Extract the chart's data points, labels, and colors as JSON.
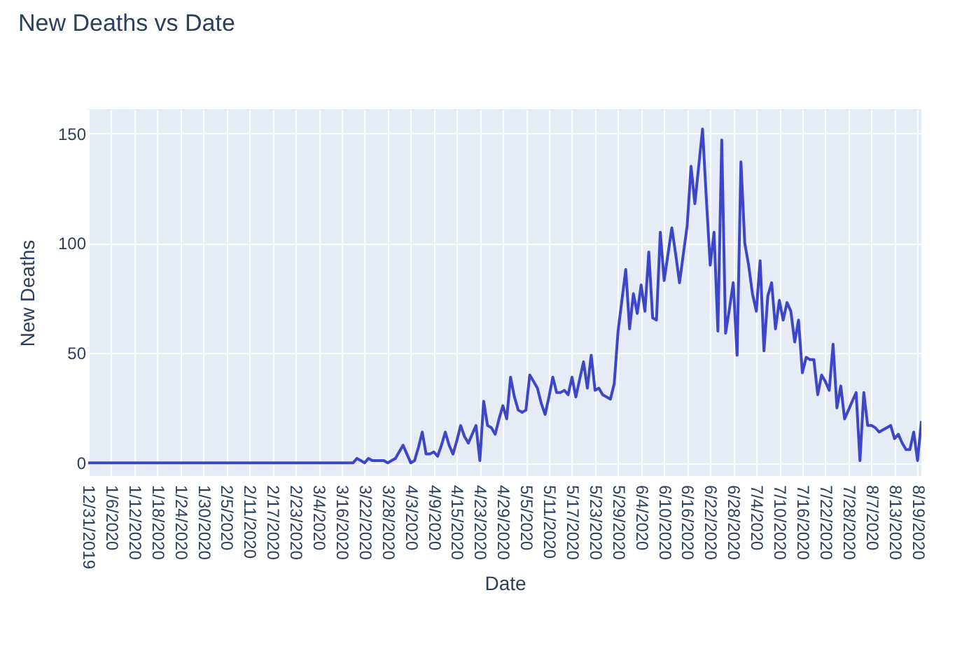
{
  "chart_data": {
    "type": "line",
    "title": "New Deaths vs Date",
    "xlabel": "Date",
    "ylabel": "New Deaths",
    "categories": [
      "12/31/2019",
      null,
      null,
      null,
      null,
      null,
      "1/6/2020",
      null,
      null,
      null,
      null,
      null,
      "1/12/2020",
      null,
      null,
      null,
      null,
      null,
      "1/18/2020",
      null,
      null,
      null,
      null,
      null,
      "1/24/2020",
      null,
      null,
      null,
      null,
      null,
      "1/30/2020",
      null,
      null,
      null,
      null,
      null,
      "2/5/2020",
      null,
      null,
      null,
      null,
      null,
      "2/11/2020",
      null,
      null,
      null,
      null,
      null,
      "2/17/2020",
      null,
      null,
      null,
      null,
      null,
      "2/23/2020",
      null,
      null,
      null,
      null,
      null,
      "3/4/2020",
      null,
      null,
      null,
      null,
      null,
      "3/16/2020",
      null,
      null,
      null,
      null,
      null,
      "3/22/2020",
      null,
      null,
      null,
      null,
      null,
      "3/28/2020",
      null,
      null,
      null,
      null,
      null,
      "4/3/2020",
      null,
      null,
      null,
      null,
      null,
      "4/9/2020",
      null,
      null,
      null,
      null,
      null,
      "4/15/2020",
      null,
      null,
      null,
      null,
      null,
      "4/23/2020",
      null,
      null,
      null,
      null,
      null,
      "4/29/2020",
      null,
      null,
      null,
      null,
      null,
      "5/5/2020",
      null,
      null,
      null,
      null,
      null,
      "5/11/2020",
      null,
      null,
      null,
      null,
      null,
      "5/17/2020",
      null,
      null,
      null,
      null,
      null,
      "5/23/2020",
      null,
      null,
      null,
      null,
      null,
      "5/29/2020",
      null,
      null,
      null,
      null,
      null,
      "6/4/2020",
      null,
      null,
      null,
      null,
      null,
      "6/10/2020",
      null,
      null,
      null,
      null,
      null,
      "6/16/2020",
      null,
      null,
      null,
      null,
      null,
      "6/22/2020",
      null,
      null,
      null,
      null,
      null,
      "6/28/2020",
      null,
      null,
      null,
      null,
      null,
      "7/4/2020",
      null,
      null,
      null,
      null,
      null,
      "7/10/2020",
      null,
      null,
      null,
      null,
      null,
      "7/16/2020",
      null,
      null,
      null,
      null,
      null,
      "7/22/2020",
      null,
      null,
      null,
      null,
      null,
      "7/28/2020",
      null,
      null,
      null,
      null,
      null,
      "8/7/2020",
      null,
      null,
      null,
      null,
      null,
      "8/13/2020",
      null,
      null,
      null,
      null,
      null,
      "8/19/2020",
      null
    ],
    "series": [
      {
        "color": "#3d46c9",
        "values": [
          0,
          0,
          0,
          0,
          0,
          0,
          0,
          0,
          0,
          0,
          0,
          0,
          0,
          0,
          0,
          0,
          0,
          0,
          0,
          0,
          0,
          0,
          0,
          0,
          0,
          0,
          0,
          0,
          0,
          0,
          0,
          0,
          0,
          0,
          0,
          0,
          0,
          0,
          0,
          0,
          0,
          0,
          0,
          0,
          0,
          0,
          0,
          0,
          0,
          0,
          0,
          0,
          0,
          0,
          0,
          0,
          0,
          0,
          0,
          0,
          0,
          0,
          0,
          0,
          0,
          0,
          0,
          0,
          0,
          0,
          2,
          1,
          0,
          2,
          1,
          1,
          1,
          1,
          0,
          1,
          2,
          5,
          8,
          4,
          0,
          1,
          7,
          14,
          4,
          4,
          5,
          3,
          8,
          14,
          8,
          4,
          10,
          17,
          12,
          9,
          13,
          17,
          1,
          28,
          17,
          16,
          13,
          20,
          26,
          20,
          39,
          30,
          24,
          23,
          24,
          40,
          37,
          34,
          27,
          22,
          30,
          39,
          32,
          32,
          33,
          31,
          39,
          30,
          38,
          46,
          34,
          49,
          33,
          34,
          31,
          30,
          29,
          36,
          60,
          74,
          88,
          61,
          77,
          68,
          81,
          69,
          96,
          66,
          65,
          105,
          83,
          95,
          107,
          95,
          82,
          95,
          108,
          135,
          118,
          135,
          152,
          120,
          90,
          105,
          60,
          147,
          59,
          70,
          82,
          49,
          137,
          100,
          90,
          77,
          69,
          92,
          51,
          76,
          82,
          61,
          74,
          65,
          73,
          69,
          55,
          65,
          41,
          48,
          47,
          47,
          31,
          40,
          37,
          33,
          54,
          25,
          35,
          20,
          24,
          28,
          32,
          1,
          32,
          17,
          17,
          16,
          14,
          15,
          16,
          17,
          11,
          13,
          9,
          6,
          6,
          14,
          1,
          19
        ]
      }
    ],
    "ylim": [
      -6,
      161
    ],
    "yticks": [
      0,
      50,
      100,
      150
    ],
    "grid": true
  }
}
